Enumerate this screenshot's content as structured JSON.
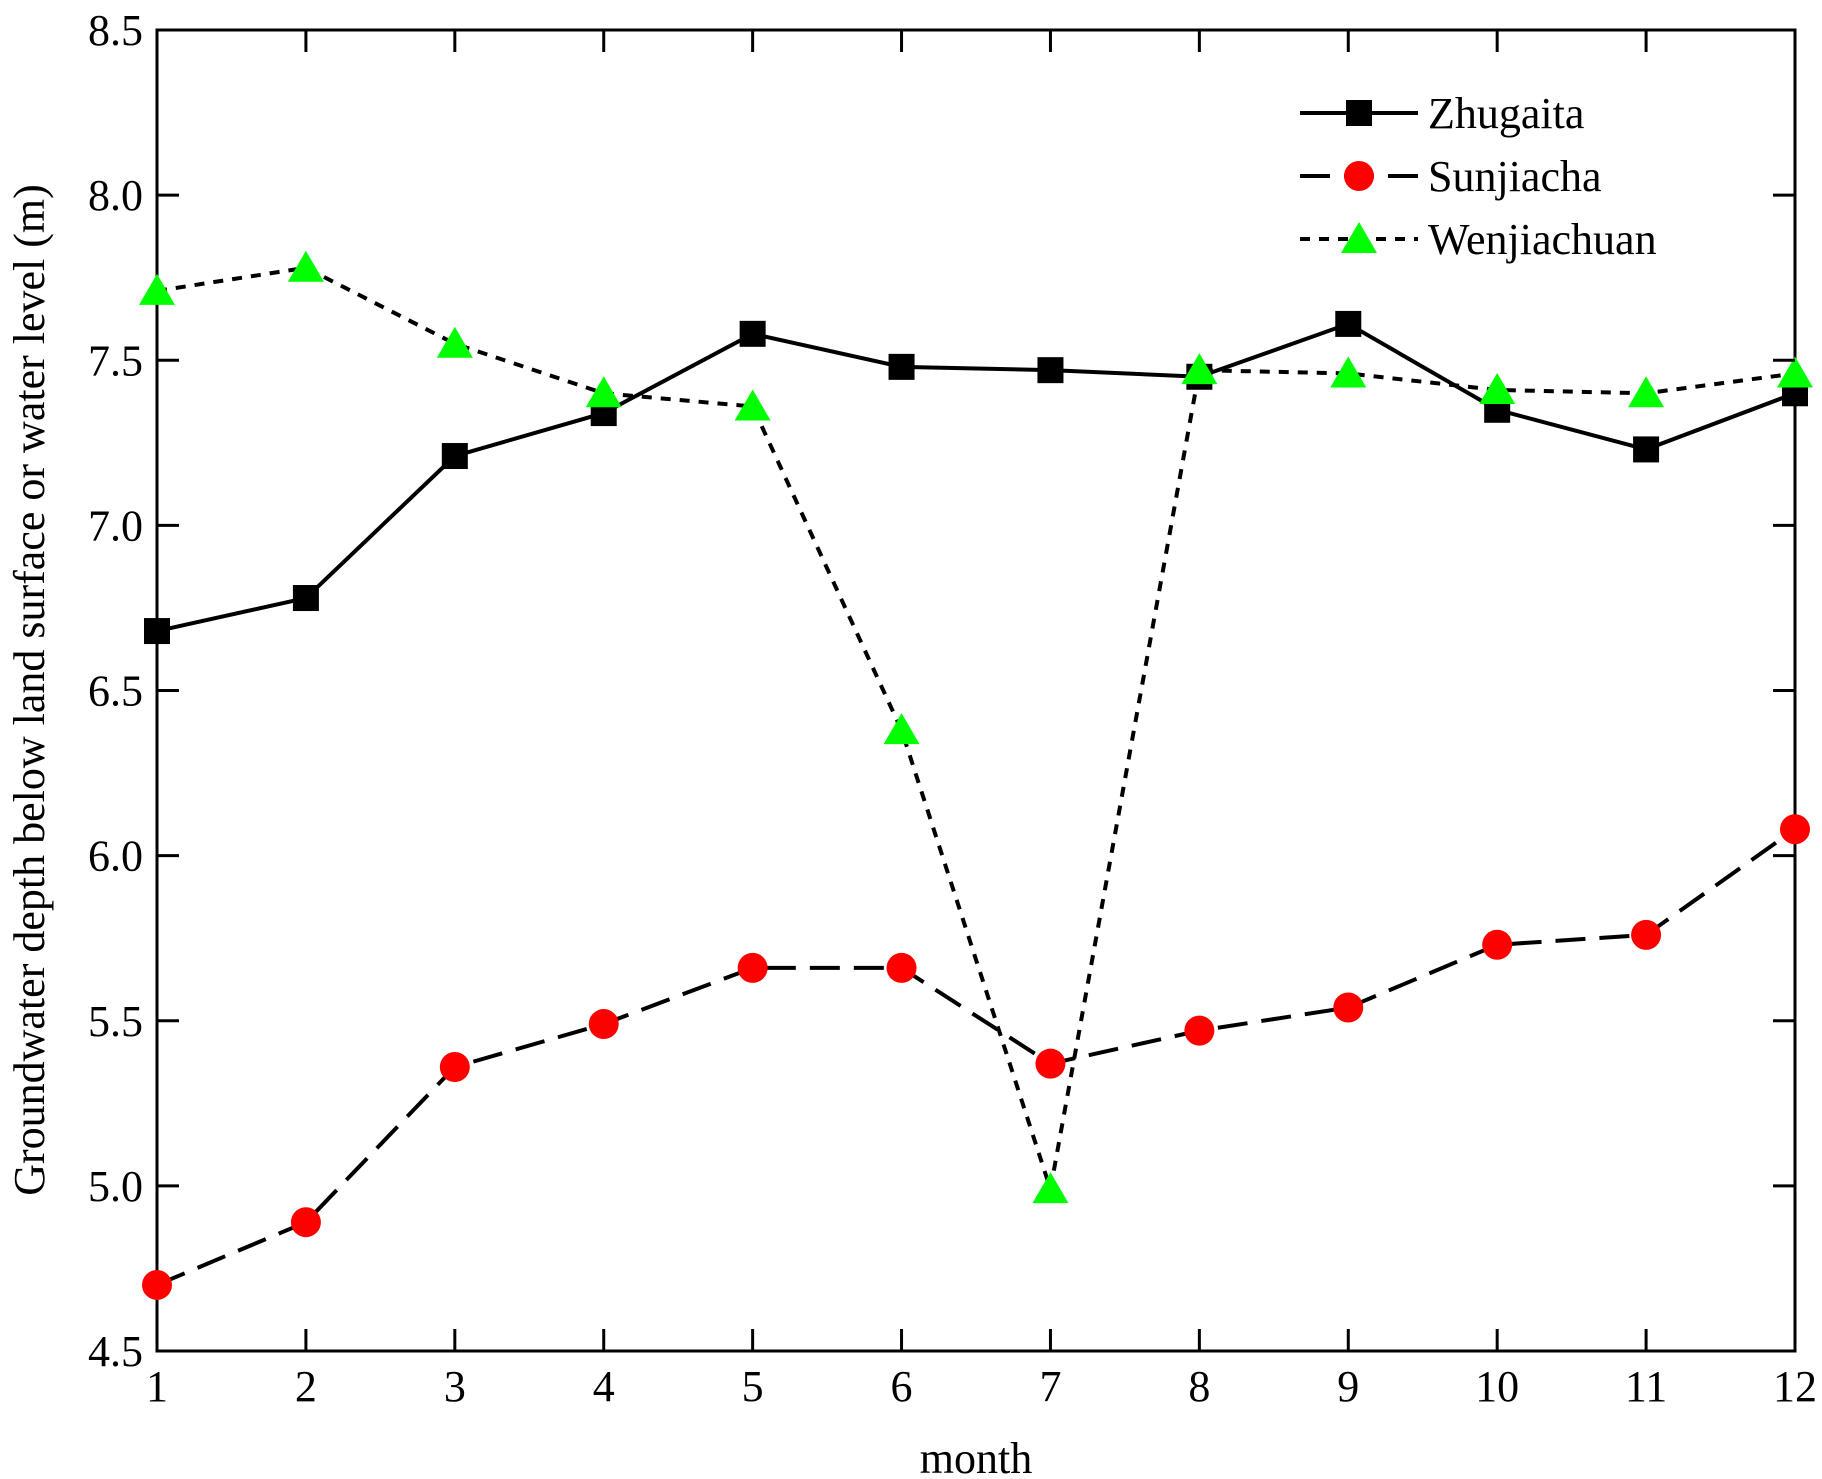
{
  "chart_data": {
    "type": "line",
    "title": "",
    "xlabel": "month",
    "ylabel": "Groundwater depth below land surface or water level (m)",
    "x": [
      1,
      2,
      3,
      4,
      5,
      6,
      7,
      8,
      9,
      10,
      11,
      12
    ],
    "xticks": [
      "1",
      "2",
      "3",
      "4",
      "5",
      "6",
      "7",
      "8",
      "9",
      "10",
      "11",
      "12"
    ],
    "xlim": [
      1,
      12
    ],
    "ylim": [
      4.5,
      8.5
    ],
    "yticks": [
      "4.5",
      "5.0",
      "5.5",
      "6.0",
      "6.5",
      "7.0",
      "7.5",
      "8.0",
      "8.5"
    ],
    "grid": false,
    "legend_position": "top-right",
    "series": [
      {
        "name": "Zhugaita",
        "values": [
          6.68,
          6.78,
          7.21,
          7.34,
          7.58,
          7.48,
          7.47,
          7.45,
          7.61,
          7.35,
          7.23,
          7.4
        ],
        "line_style": "solid",
        "marker": "square",
        "color": "#000000"
      },
      {
        "name": "Sunjiacha",
        "values": [
          4.7,
          4.89,
          5.36,
          5.49,
          5.66,
          5.66,
          5.37,
          5.47,
          5.54,
          5.73,
          5.76,
          6.08
        ],
        "line_style": "dashed",
        "marker": "circle",
        "color": "#ff0000"
      },
      {
        "name": "Wenjiachuan",
        "values": [
          7.71,
          7.78,
          7.55,
          7.4,
          7.36,
          6.38,
          4.99,
          7.47,
          7.46,
          7.41,
          7.4,
          7.46
        ],
        "line_style": "dotted",
        "marker": "triangle",
        "color": "#00ff00"
      }
    ]
  }
}
